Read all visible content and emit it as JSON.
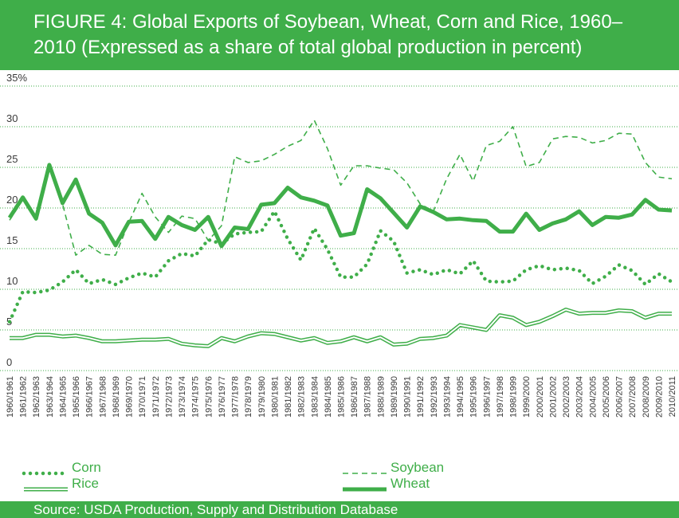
{
  "chart_data": {
    "type": "line",
    "title": "FIGURE 4: Global Exports of Soybean, Wheat, Corn and Rice, 1960–2010 (Expressed as a share of total global production in percent)",
    "source": "Source: USDA Production, Supply and Distribution Database",
    "categories": [
      "1960/1961",
      "1961/1962",
      "1962/1963",
      "1963/1964",
      "1964/1965",
      "1965/1966",
      "1966/1967",
      "1967/1968",
      "1968/1969",
      "1969/1970",
      "1970/1971",
      "1971/1972",
      "1972/1973",
      "1973/1974",
      "1974/1975",
      "1975/1976",
      "1976/1977",
      "1977/1978",
      "1978/1979",
      "1979/1980",
      "1980/1981",
      "1981/1982",
      "1982/1983",
      "1983/1984",
      "1984/1985",
      "1985/1986",
      "1986/1987",
      "1987/1988",
      "1988/1989",
      "1989/1990",
      "1990/1991",
      "1991/1992",
      "1992/1993",
      "1993/1994",
      "1994/1995",
      "1995/1996",
      "1996/1997",
      "1997/1998",
      "1998/1999",
      "1999/2000",
      "2000/2001",
      "2001/2002",
      "2002/2003",
      "2003/2004",
      "2004/2005",
      "2005/2006",
      "2006/2007",
      "2007/2008",
      "2008/2009",
      "2009/2010",
      "2010/2011"
    ],
    "series": [
      {
        "name": "Corn",
        "color": "#3fae49",
        "style": "dotted",
        "values": [
          6.0,
          9.7,
          9.6,
          9.9,
          10.9,
          12.4,
          10.7,
          11.2,
          10.6,
          11.4,
          12.0,
          11.5,
          13.5,
          14.4,
          14.1,
          16.1,
          15.6,
          16.8,
          17.0,
          17.1,
          19.6,
          16.2,
          13.6,
          17.5,
          14.9,
          11.5,
          11.5,
          13.1,
          17.2,
          15.9,
          12.0,
          12.4,
          11.8,
          12.4,
          11.9,
          13.5,
          11.0,
          10.9,
          11.0,
          12.4,
          12.9,
          12.4,
          12.6,
          12.3,
          10.7,
          11.6,
          13.0,
          12.3,
          10.6,
          11.9,
          10.9
        ]
      },
      {
        "name": "Soybean",
        "color": "#3fae49",
        "style": "dashed",
        "values": [
          18.5,
          21.0,
          18.5,
          25.0,
          20.5,
          14.2,
          15.4,
          14.3,
          14.2,
          18.2,
          21.8,
          18.9,
          17.0,
          19.0,
          18.7,
          16.0,
          17.8,
          26.3,
          25.6,
          25.8,
          26.6,
          27.6,
          28.3,
          30.8,
          27.3,
          22.8,
          25.2,
          25.2,
          24.9,
          24.7,
          23.1,
          20.5,
          19.6,
          23.6,
          26.6,
          23.3,
          27.7,
          28.2,
          30.0,
          25.1,
          25.6,
          28.5,
          28.8,
          28.7,
          28.0,
          28.3,
          29.2,
          29.1,
          25.6,
          23.8,
          23.6
        ]
      },
      {
        "name": "Rice",
        "color": "#3fae49",
        "style": "double",
        "values": [
          4.0,
          4.0,
          4.4,
          4.4,
          4.2,
          4.3,
          4.0,
          3.6,
          3.6,
          3.7,
          3.8,
          3.8,
          3.9,
          3.3,
          3.1,
          3.0,
          4.0,
          3.6,
          4.2,
          4.6,
          4.5,
          4.1,
          3.7,
          4.0,
          3.4,
          3.6,
          4.1,
          3.6,
          4.1,
          3.2,
          3.3,
          3.9,
          4.0,
          4.3,
          5.6,
          5.3,
          5.0,
          6.8,
          6.5,
          5.6,
          6.0,
          6.7,
          7.5,
          7.0,
          7.1,
          7.1,
          7.4,
          7.3,
          6.5,
          7.0,
          7.0
        ]
      },
      {
        "name": "Wheat",
        "color": "#3fae49",
        "style": "solid",
        "values": [
          18.8,
          21.3,
          18.7,
          25.3,
          20.6,
          23.5,
          19.3,
          18.2,
          15.4,
          18.3,
          18.4,
          16.2,
          18.9,
          17.9,
          17.3,
          18.9,
          15.3,
          17.6,
          17.4,
          20.4,
          20.6,
          22.5,
          21.3,
          20.9,
          20.3,
          16.6,
          16.9,
          22.3,
          21.2,
          19.4,
          17.6,
          20.2,
          19.5,
          18.6,
          18.7,
          18.5,
          18.4,
          17.1,
          17.1,
          19.3,
          17.3,
          18.1,
          18.6,
          19.6,
          17.9,
          18.9,
          18.8,
          19.2,
          21.0,
          19.8,
          19.7
        ]
      }
    ],
    "ylim": [
      0,
      35
    ],
    "yticks": [
      0,
      5,
      10,
      15,
      20,
      25,
      30,
      {
        "value": 35,
        "label": "35%"
      }
    ],
    "grid": true
  }
}
